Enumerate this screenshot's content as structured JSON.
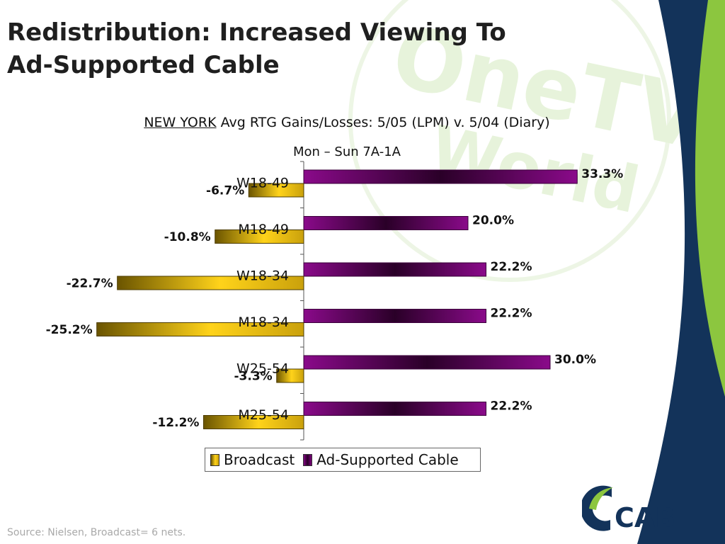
{
  "slide": {
    "title_line1": "Redistribution: Increased Viewing To",
    "title_line2": "Ad-Supported Cable",
    "source": "Source:  Nielsen, Broadcast= 6 nets.",
    "watermark_line1": "OneTV",
    "watermark_line2": "World",
    "logo_text": "CAB"
  },
  "colors": {
    "broadcast": "#ffd31a",
    "broadcast_dark": "#6a5400",
    "cable": "#800080",
    "cable_dark": "#2a0028",
    "navy": "#13335a",
    "green": "#8cc63f",
    "watermark": "#d9ecc6"
  },
  "chart_data": {
    "type": "bar",
    "orientation": "horizontal",
    "title_underlined": "NEW YORK",
    "title_rest": " Avg RTG Gains/Losses: 5/05 (LPM) v. 5/04 (Diary)",
    "subtitle": "Mon – Sun 7A-1A",
    "categories": [
      "W18-49",
      "M18-49",
      "W18-34",
      "M18-34",
      "W25-54",
      "M25-54"
    ],
    "series": [
      {
        "name": "Broadcast",
        "values": [
          -6.7,
          -10.8,
          -22.7,
          -25.2,
          -3.3,
          -12.2
        ],
        "labels": [
          "-6.7%",
          "-10.8%",
          "-22.7%",
          "-25.2%",
          "-3.3%",
          "-12.2%"
        ]
      },
      {
        "name": "Ad-Supported Cable",
        "values": [
          33.3,
          20.0,
          22.2,
          22.2,
          30.0,
          22.2
        ],
        "labels": [
          "33.3%",
          "20.0%",
          "22.2%",
          "22.2%",
          "30.0%",
          "22.2%"
        ]
      }
    ],
    "value_unit": "%",
    "legend_position": "bottom",
    "grid": false
  }
}
